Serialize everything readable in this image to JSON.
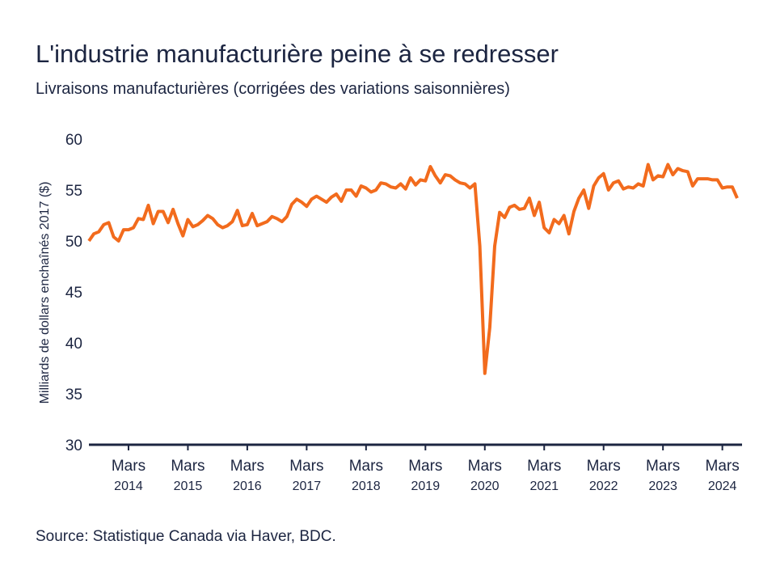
{
  "chart_data": {
    "type": "line",
    "title": "L'industrie manufacturière peine à se redresser",
    "subtitle": "Livraisons manufacturières (corrigées des variations saisonnières)",
    "y_label": "Milliards de dollars enchaînés 2017 ($)",
    "source": "Source: Statistique Canada via Haver, BDC.",
    "categories": [
      null,
      null,
      null,
      null,
      null,
      null,
      null,
      null,
      [
        "Mars",
        "2014"
      ],
      null,
      null,
      null,
      null,
      null,
      null,
      null,
      null,
      null,
      null,
      null,
      [
        "Mars",
        "2015"
      ],
      null,
      null,
      null,
      null,
      null,
      null,
      null,
      null,
      null,
      null,
      null,
      [
        "Mars",
        "2016"
      ],
      null,
      null,
      null,
      null,
      null,
      null,
      null,
      null,
      null,
      null,
      null,
      [
        "Mars",
        "2017"
      ],
      null,
      null,
      null,
      null,
      null,
      null,
      null,
      null,
      null,
      null,
      null,
      [
        "Mars",
        "2018"
      ],
      null,
      null,
      null,
      null,
      null,
      null,
      null,
      null,
      null,
      null,
      null,
      [
        "Mars",
        "2019"
      ],
      null,
      null,
      null,
      null,
      null,
      null,
      null,
      null,
      null,
      null,
      null,
      [
        "Mars",
        "2020"
      ],
      null,
      null,
      null,
      null,
      null,
      null,
      null,
      null,
      null,
      null,
      null,
      [
        "Mars",
        "2021"
      ],
      null,
      null,
      null,
      null,
      null,
      null,
      null,
      null,
      null,
      null,
      null,
      [
        "Mars",
        "2022"
      ],
      null,
      null,
      null,
      null,
      null,
      null,
      null,
      null,
      null,
      null,
      null,
      [
        "Mars",
        "2023"
      ],
      null,
      null,
      null,
      null,
      null,
      null,
      null,
      null,
      null,
      null,
      null,
      [
        "Mars",
        "2024"
      ],
      null,
      null,
      null
    ],
    "series": [
      {
        "name": "Livraisons manufacturières",
        "color": "#f26b1d",
        "values": [
          50.0,
          50.7,
          50.9,
          51.6,
          51.8,
          50.4,
          50.0,
          51.1,
          51.1,
          51.3,
          52.2,
          52.1,
          53.5,
          51.7,
          52.9,
          52.9,
          51.8,
          53.1,
          51.7,
          50.5,
          52.1,
          51.4,
          51.6,
          52.0,
          52.5,
          52.2,
          51.6,
          51.3,
          51.5,
          51.9,
          53.0,
          51.5,
          51.6,
          52.7,
          51.5,
          51.7,
          51.9,
          52.4,
          52.2,
          51.9,
          52.4,
          53.6,
          54.1,
          53.8,
          53.4,
          54.1,
          54.4,
          54.1,
          53.8,
          54.3,
          54.6,
          53.9,
          55.0,
          55.0,
          54.4,
          55.4,
          55.2,
          54.8,
          55.0,
          55.7,
          55.6,
          55.3,
          55.2,
          55.6,
          55.1,
          56.2,
          55.5,
          56.0,
          55.9,
          57.3,
          56.4,
          55.7,
          56.5,
          56.4,
          56.0,
          55.7,
          55.6,
          55.2,
          55.6,
          49.5,
          37.0,
          41.5,
          49.5,
          52.8,
          52.3,
          53.3,
          53.5,
          53.1,
          53.2,
          54.2,
          52.5,
          53.8,
          51.3,
          50.8,
          52.1,
          51.7,
          52.5,
          50.7,
          52.9,
          54.2,
          55.0,
          53.2,
          55.4,
          56.2,
          56.6,
          55.0,
          55.7,
          55.9,
          55.1,
          55.3,
          55.2,
          55.6,
          55.4,
          57.5,
          56.0,
          56.4,
          56.3,
          57.5,
          56.5,
          57.1,
          56.9,
          56.8,
          55.4,
          56.1,
          56.1,
          56.1,
          56.0,
          56.0,
          55.2,
          55.3,
          55.3,
          54.2
        ]
      }
    ],
    "ylim": [
      30,
      60
    ],
    "yticks": [
      30,
      35,
      40,
      45,
      50,
      55,
      60
    ],
    "grid": false
  }
}
